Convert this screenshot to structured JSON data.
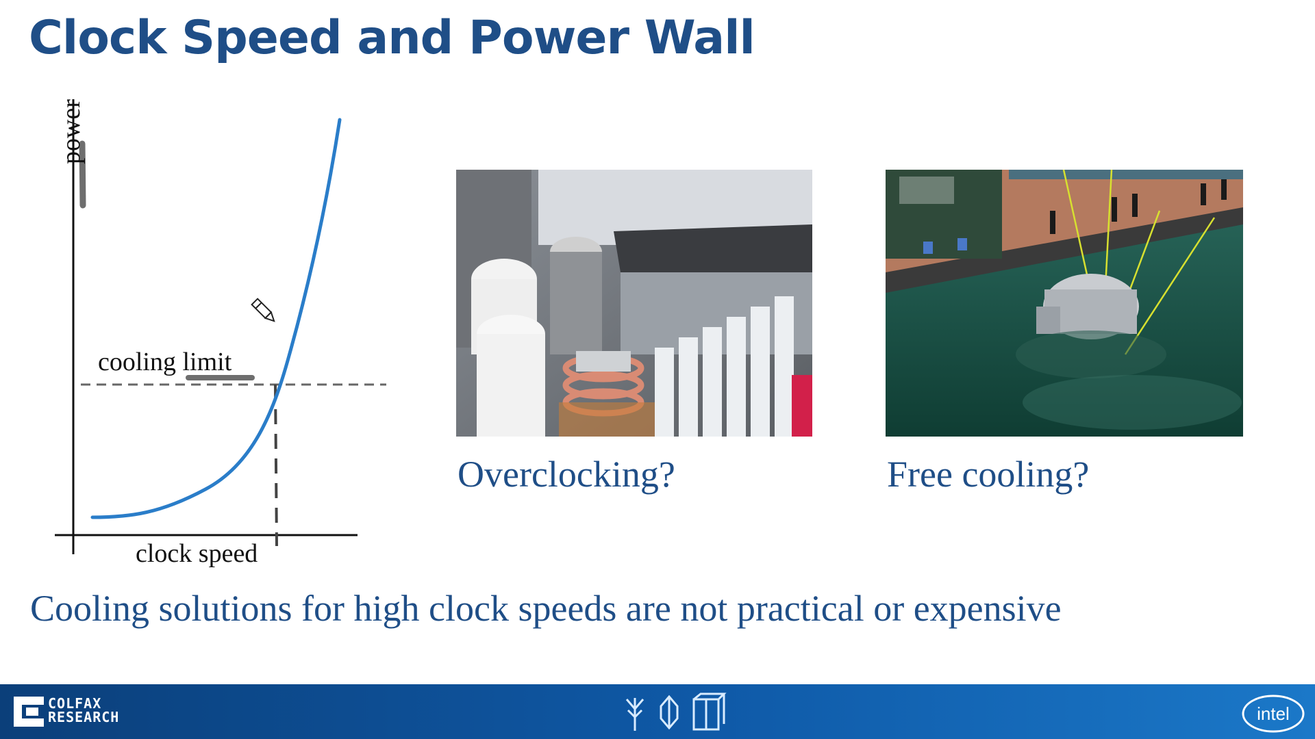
{
  "slide": {
    "title": "Clock Speed and Power Wall",
    "bottom_text": "Cooling solutions for high clock speeds are not practical or expensive"
  },
  "chart": {
    "y_label": "power",
    "x_label": "clock speed",
    "annotation": "cooling limit"
  },
  "photos": [
    {
      "caption": "Overclocking?",
      "icon": "frosted-motherboard-photo"
    },
    {
      "caption": "Free cooling?",
      "icon": "underwater-datacenter-photo"
    }
  ],
  "footer": {
    "brand_line1": "COLFAX",
    "brand_line2": "RESEARCH",
    "intel": "intel",
    "icons": [
      "tree-icon",
      "crystal-icon",
      "cube-icon"
    ]
  },
  "colors": {
    "title": "#1f4e87",
    "curve": "#2a7dc9",
    "footer": "#0f5aa8"
  }
}
